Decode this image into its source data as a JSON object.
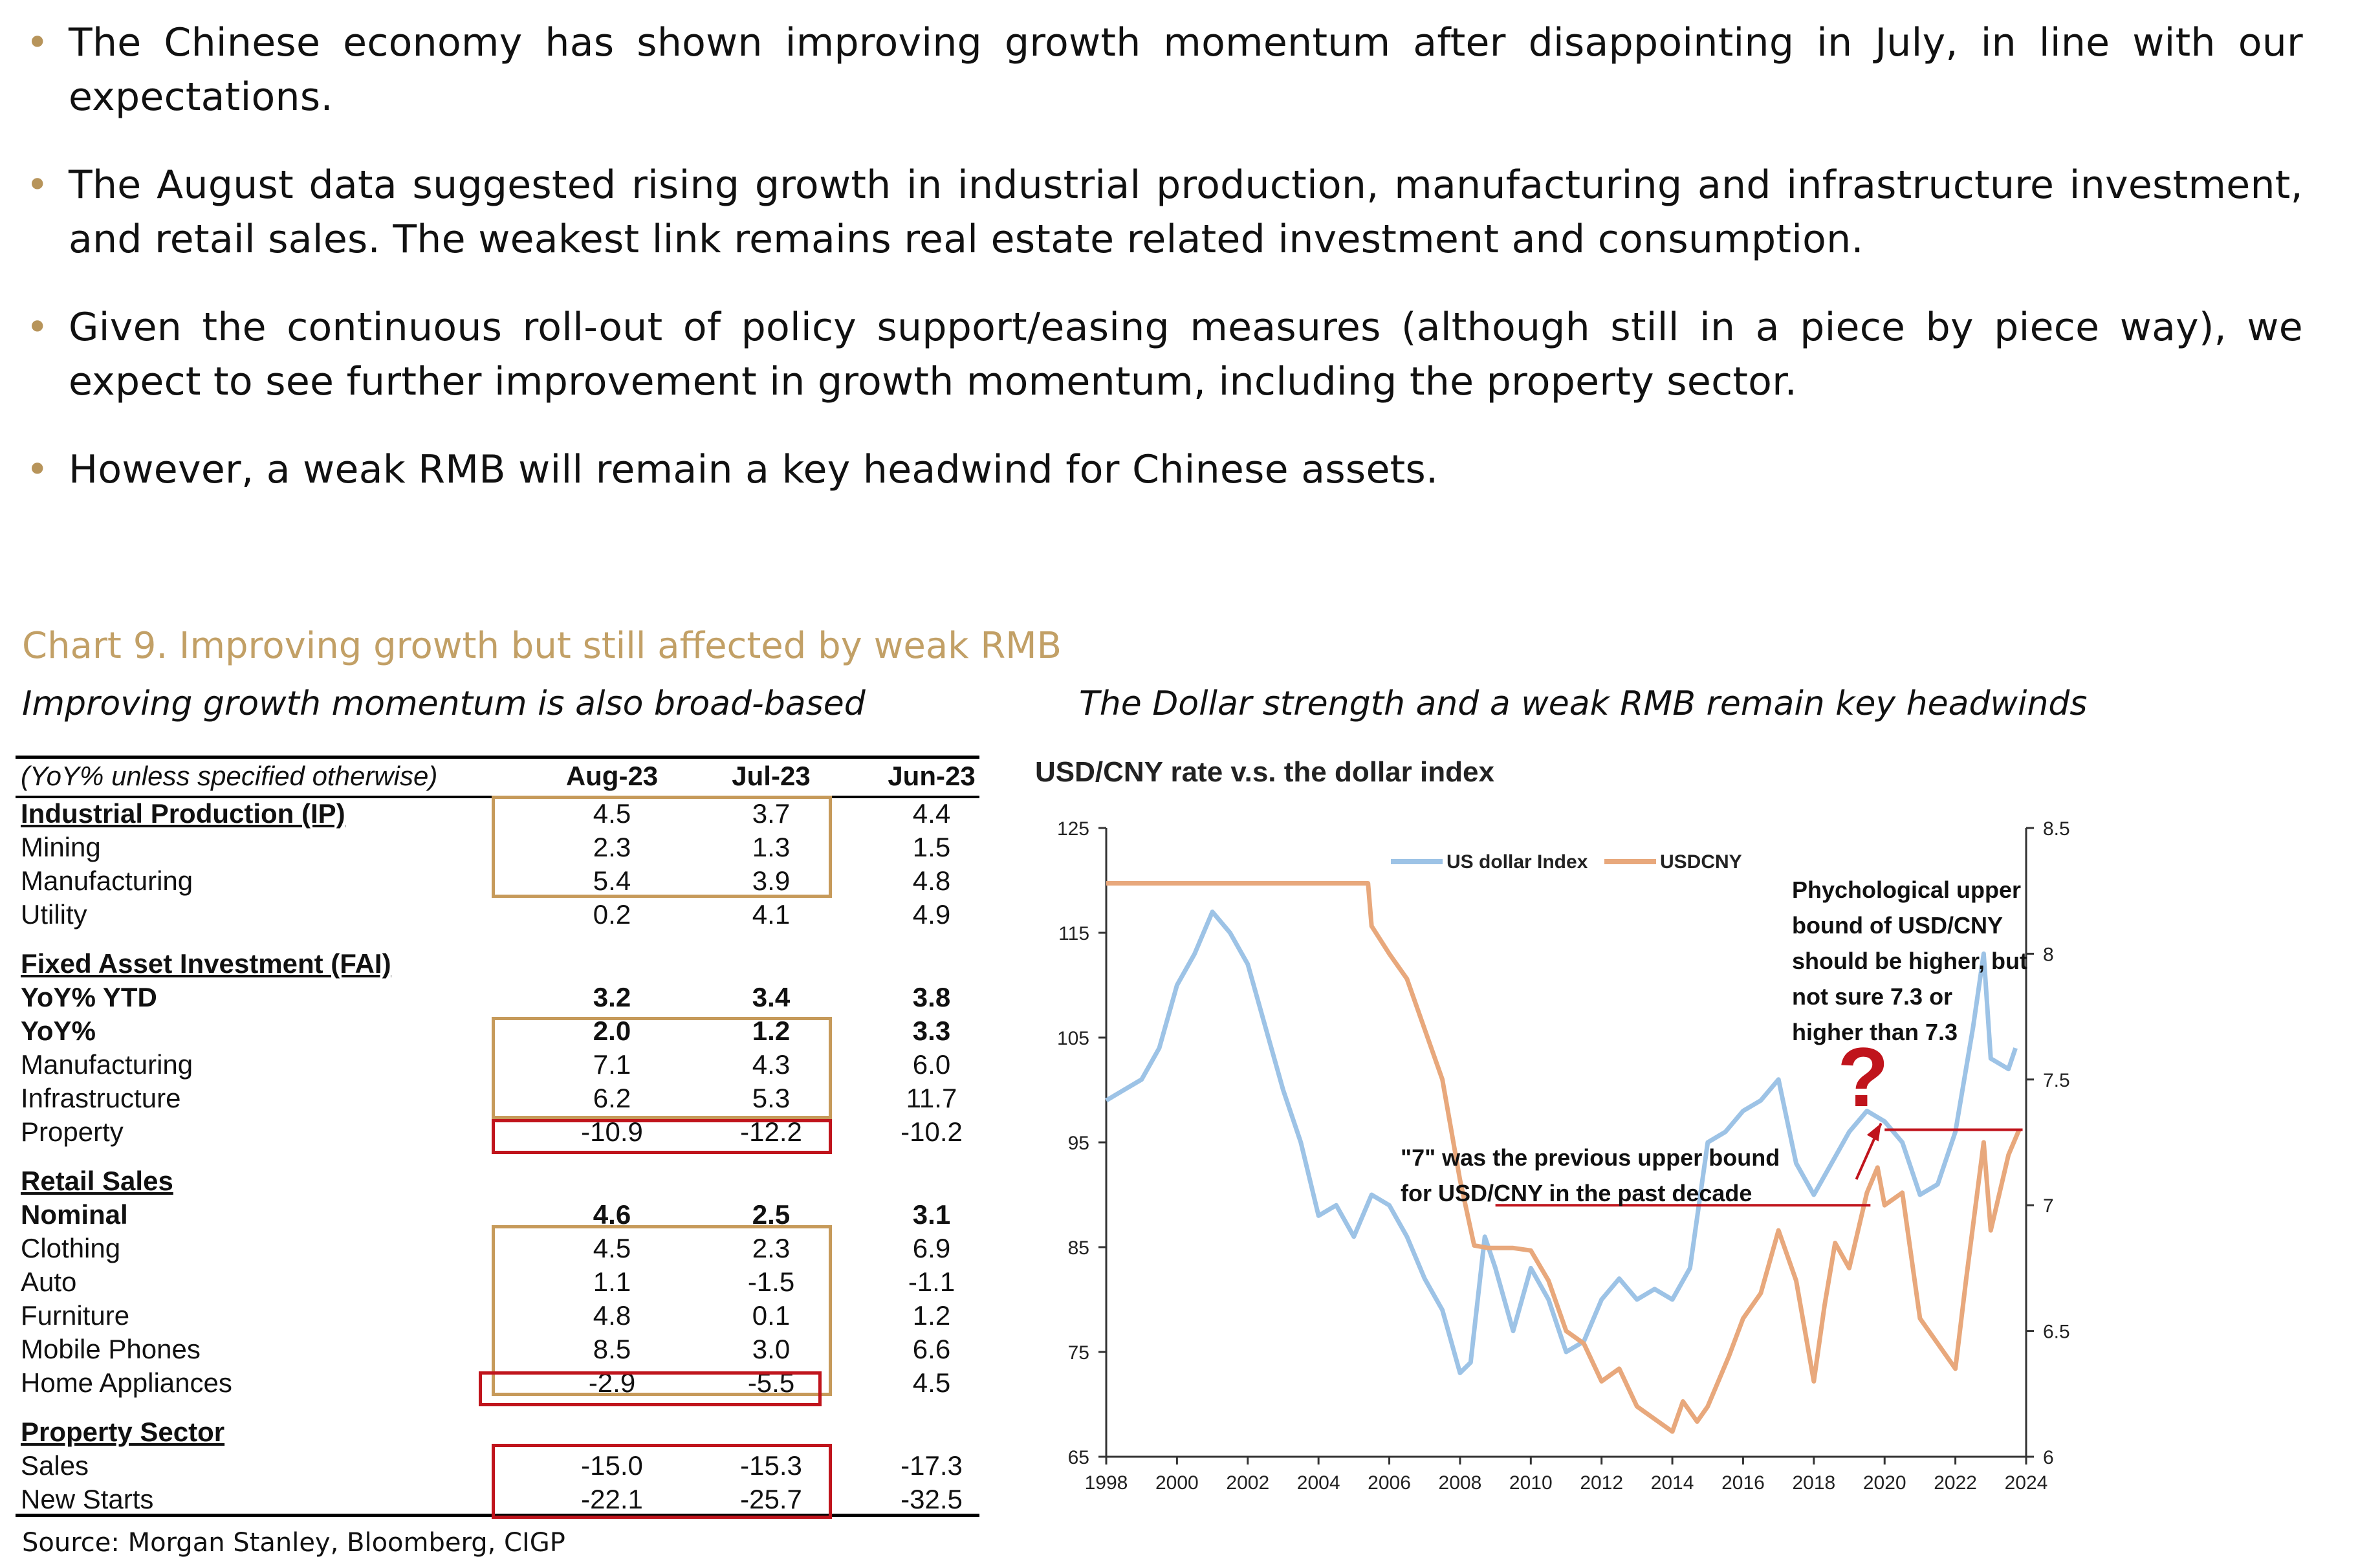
{
  "bullets": [
    "The Chinese economy has shown improving growth momentum after disappointing in July, in line with our expectations.",
    "The August data suggested rising growth in industrial production, manufacturing and infrastructure investment, and retail sales. The weakest link remains real estate related investment and consumption.",
    "Given the continuous roll-out of policy support/easing measures (although still in a piece by piece way), we expect to see further improvement in growth momentum, including the property sector.",
    "However, a weak RMB will remain a key headwind for Chinese assets."
  ],
  "bullet_symbol": "•",
  "chart_title": "Chart 9. Improving growth but still affected by weak RMB",
  "left_subtitle": "Improving growth momentum is also broad-based",
  "right_subtitle": "The Dollar strength and a weak RMB remain key headwinds",
  "table": {
    "header": {
      "label": "(YoY% unless specified otherwise)",
      "cols": [
        "Aug-23",
        "Jul-23",
        "Jun-23"
      ]
    },
    "rows": [
      {
        "label": "Industrial Production (IP)",
        "values": [
          "4.5",
          "3.7",
          "4.4"
        ],
        "style": "section-bold"
      },
      {
        "label": "Mining",
        "values": [
          "2.3",
          "1.3",
          "1.5"
        ],
        "style": "normal"
      },
      {
        "label": "Manufacturing",
        "values": [
          "5.4",
          "3.9",
          "4.8"
        ],
        "style": "normal"
      },
      {
        "label": "Utility",
        "values": [
          "0.2",
          "4.1",
          "4.9"
        ],
        "style": "normal"
      },
      {
        "label": "Fixed Asset Investment (FAI)",
        "values": [
          "",
          "",
          ""
        ],
        "style": "section"
      },
      {
        "label": "YoY% YTD",
        "values": [
          "3.2",
          "3.4",
          "3.8"
        ],
        "style": "bold"
      },
      {
        "label": "YoY%",
        "values": [
          "2.0",
          "1.2",
          "3.3"
        ],
        "style": "bold"
      },
      {
        "label": "Manufacturing",
        "values": [
          "7.1",
          "4.3",
          "6.0"
        ],
        "style": "normal"
      },
      {
        "label": "Infrastructure",
        "values": [
          "6.2",
          "5.3",
          "11.7"
        ],
        "style": "normal"
      },
      {
        "label": "Property",
        "values": [
          "-10.9",
          "-12.2",
          "-10.2"
        ],
        "style": "normal"
      },
      {
        "label": "Retail Sales",
        "values": [
          "",
          "",
          ""
        ],
        "style": "section"
      },
      {
        "label": "Nominal",
        "values": [
          "4.6",
          "2.5",
          "3.1"
        ],
        "style": "bold"
      },
      {
        "label": "Clothing",
        "values": [
          "4.5",
          "2.3",
          "6.9"
        ],
        "style": "normal"
      },
      {
        "label": "Auto",
        "values": [
          "1.1",
          "-1.5",
          "-1.1"
        ],
        "style": "normal"
      },
      {
        "label": "Furniture",
        "values": [
          "4.8",
          "0.1",
          "1.2"
        ],
        "style": "normal"
      },
      {
        "label": "Mobile Phones",
        "values": [
          "8.5",
          "3.0",
          "6.6"
        ],
        "style": "normal"
      },
      {
        "label": "Home Appliances",
        "values": [
          "-2.9",
          "-5.5",
          "4.5"
        ],
        "style": "normal"
      },
      {
        "label": "Property Sector",
        "values": [
          "",
          "",
          ""
        ],
        "style": "section"
      },
      {
        "label": "Sales",
        "values": [
          "-15.0",
          "-15.3",
          "-17.3"
        ],
        "style": "normal"
      },
      {
        "label": "New Starts",
        "values": [
          "-22.1",
          "-25.7",
          "-32.5"
        ],
        "style": "normal"
      }
    ]
  },
  "source": "Source: Morgan Stanley, Bloomberg, CIGP",
  "colors": {
    "accent": "#c2a066",
    "box_tan": "#c69a5a",
    "box_red": "#c0141c",
    "dxy": "#9dc3e6",
    "usdcny": "#e8a87c",
    "annotation": "#c0141c"
  },
  "chart_data": {
    "type": "line",
    "title": "USD/CNY rate v.s. the dollar index",
    "x_ticks": [
      "1998",
      "2000",
      "2002",
      "2004",
      "2006",
      "2008",
      "2010",
      "2012",
      "2014",
      "2016",
      "2018",
      "2020",
      "2022",
      "2024"
    ],
    "xlim": [
      1998,
      2024
    ],
    "y_left": {
      "range": [
        65,
        125
      ],
      "ticks": [
        "125",
        "115",
        "105",
        "95",
        "85",
        "75",
        "65"
      ]
    },
    "y_right": {
      "range": [
        6,
        8.5
      ],
      "ticks": [
        "8.5",
        "8",
        "7.5",
        "7",
        "6.5",
        "6"
      ]
    },
    "legend": {
      "position": "top",
      "entries": [
        "US dollar Index",
        "USDCNY"
      ]
    },
    "series": [
      {
        "name": "US dollar Index",
        "axis": "left",
        "x": [
          1998,
          1998.5,
          1999,
          1999.5,
          2000,
          2000.5,
          2001,
          2001.5,
          2002,
          2002.5,
          2003,
          2003.5,
          2004,
          2004.5,
          2005,
          2005.5,
          2006,
          2006.5,
          2007,
          2007.5,
          2008,
          2008.3,
          2008.7,
          2009,
          2009.5,
          2010,
          2010.5,
          2011,
          2011.5,
          2012,
          2012.5,
          2013,
          2013.5,
          2014,
          2014.5,
          2015,
          2015.5,
          2016,
          2016.5,
          2017,
          2017.5,
          2018,
          2018.5,
          2019,
          2019.5,
          2020,
          2020.5,
          2021,
          2021.5,
          2022,
          2022.5,
          2022.8,
          2023,
          2023.5,
          2023.7
        ],
        "values": [
          99,
          100,
          101,
          104,
          110,
          113,
          117,
          115,
          112,
          106,
          100,
          95,
          88,
          89,
          86,
          90,
          89,
          86,
          82,
          79,
          73,
          74,
          86,
          83,
          77,
          83,
          80,
          75,
          76,
          80,
          82,
          80,
          81,
          80,
          83,
          95,
          96,
          98,
          99,
          101,
          93,
          90,
          93,
          96,
          98,
          97,
          95,
          90,
          91,
          96,
          106,
          113,
          103,
          102,
          104
        ]
      },
      {
        "name": "USDCNY",
        "axis": "right",
        "x": [
          1998,
          2005.4,
          2005.5,
          2006,
          2006.5,
          2007,
          2007.5,
          2008,
          2008.4,
          2008.8,
          2009,
          2009.5,
          2010,
          2010.5,
          2011,
          2011.5,
          2012,
          2012.5,
          2013,
          2013.5,
          2014,
          2014.3,
          2014.7,
          2015,
          2015.6,
          2016,
          2016.5,
          2017,
          2017.5,
          2018,
          2018.3,
          2018.6,
          2019,
          2019.5,
          2019.8,
          2020,
          2020.5,
          2021,
          2021.5,
          2022,
          2022.3,
          2022.8,
          2023,
          2023.5,
          2023.8
        ],
        "values": [
          8.28,
          8.28,
          8.11,
          8.0,
          7.9,
          7.7,
          7.5,
          7.1,
          6.84,
          6.83,
          6.83,
          6.83,
          6.82,
          6.7,
          6.5,
          6.45,
          6.3,
          6.35,
          6.2,
          6.15,
          6.1,
          6.22,
          6.14,
          6.2,
          6.4,
          6.55,
          6.65,
          6.9,
          6.7,
          6.3,
          6.6,
          6.85,
          6.75,
          7.05,
          7.15,
          7.0,
          7.05,
          6.55,
          6.45,
          6.35,
          6.7,
          7.25,
          6.9,
          7.2,
          7.3
        ]
      }
    ],
    "annotations": [
      {
        "text_lines": [
          "Phychological upper",
          "bound of USD/CNY",
          "should be higher, but",
          "not sure 7.3 or",
          "higher than 7.3"
        ]
      },
      {
        "text_lines": [
          "\"7\" was the previous upper bound",
          "for USD/CNY in the past decade"
        ]
      },
      {
        "text": "?"
      }
    ],
    "reference_lines": [
      {
        "axis": "right",
        "value": 7.0,
        "x_range": [
          2009,
          2019.6
        ]
      },
      {
        "axis": "right",
        "value": 7.3,
        "x_range": [
          2020,
          2023.9
        ]
      }
    ]
  }
}
